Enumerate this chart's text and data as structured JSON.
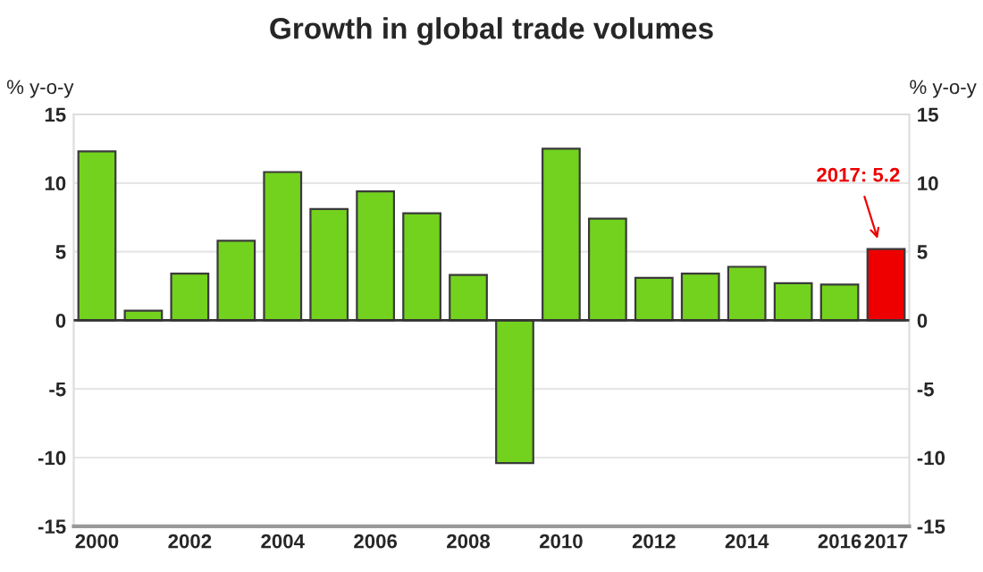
{
  "chart_data": {
    "type": "bar",
    "title": "Growth in global trade volumes",
    "ylabel": "% y-o-y",
    "y2label": "% y-o-y",
    "categories": [
      "2000",
      null,
      "2002",
      null,
      "2004",
      null,
      "2006",
      null,
      "2008",
      null,
      "2010",
      null,
      "2012",
      null,
      "2014",
      null,
      "2016",
      "2017"
    ],
    "values": [
      12.3,
      0.7,
      3.4,
      5.8,
      10.8,
      8.1,
      9.4,
      7.8,
      3.3,
      -10.4,
      12.5,
      7.4,
      3.1,
      3.4,
      3.9,
      2.7,
      2.6,
      5.2
    ],
    "colors": [
      "#73d21e",
      "#73d21e",
      "#73d21e",
      "#73d21e",
      "#73d21e",
      "#73d21e",
      "#73d21e",
      "#73d21e",
      "#73d21e",
      "#73d21e",
      "#73d21e",
      "#73d21e",
      "#73d21e",
      "#73d21e",
      "#73d21e",
      "#73d21e",
      "#73d21e",
      "#ee0000"
    ],
    "ylim": [
      -15,
      15
    ],
    "yticks": [
      -15,
      -10,
      -5,
      0,
      5,
      10,
      15
    ],
    "y2lim": [
      -15,
      15
    ],
    "y2ticks": [
      -15,
      -10,
      -5,
      0,
      5,
      10,
      15
    ],
    "grid": "y",
    "annotations": [
      {
        "text": "2017: 5.2",
        "x": "2017",
        "y": 5.2
      }
    ]
  }
}
